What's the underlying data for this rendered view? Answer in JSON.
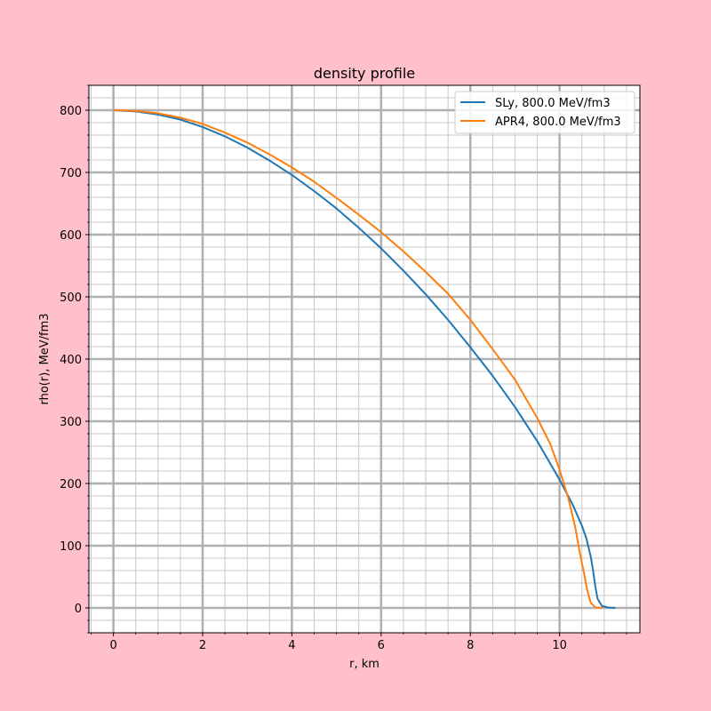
{
  "chart_data": {
    "type": "line",
    "title": "density profile",
    "xlabel": "r, km",
    "ylabel": "rho(r), MeV/fm3",
    "xlim": [
      -0.55,
      11.8
    ],
    "ylim": [
      -40,
      840
    ],
    "xticks": [
      0,
      2,
      4,
      6,
      8,
      10
    ],
    "yticks": [
      0,
      100,
      200,
      300,
      400,
      500,
      600,
      700,
      800
    ],
    "x_minor_step": 0.5,
    "y_minor_step": 20,
    "grid": true,
    "legend_position": "top-right",
    "series": [
      {
        "name": "SLy, 800.0 MeV/fm3",
        "color": "#1f77b4",
        "points": [
          [
            0,
            800
          ],
          [
            0.5,
            798
          ],
          [
            1,
            793
          ],
          [
            1.5,
            785
          ],
          [
            2,
            773
          ],
          [
            2.5,
            758
          ],
          [
            3,
            740
          ],
          [
            3.5,
            719
          ],
          [
            4,
            696
          ],
          [
            4.5,
            670
          ],
          [
            5,
            642
          ],
          [
            5.5,
            611
          ],
          [
            6,
            578
          ],
          [
            6.5,
            542
          ],
          [
            7,
            504
          ],
          [
            7.5,
            463
          ],
          [
            8,
            419
          ],
          [
            8.5,
            373
          ],
          [
            9,
            323
          ],
          [
            9.5,
            268
          ],
          [
            10,
            206
          ],
          [
            10.3,
            165
          ],
          [
            10.5,
            132
          ],
          [
            10.6,
            112
          ],
          [
            10.7,
            82
          ],
          [
            10.75,
            60
          ],
          [
            10.8,
            35
          ],
          [
            10.85,
            15
          ],
          [
            10.95,
            3
          ],
          [
            11.1,
            0.5
          ],
          [
            11.25,
            0
          ]
        ]
      },
      {
        "name": "APR4, 800.0 MeV/fm3",
        "color": "#ff7f0e",
        "points": [
          [
            0,
            800
          ],
          [
            0.5,
            799
          ],
          [
            1,
            795
          ],
          [
            1.5,
            788
          ],
          [
            2,
            778
          ],
          [
            2.5,
            764
          ],
          [
            3,
            748
          ],
          [
            3.5,
            729
          ],
          [
            4,
            708
          ],
          [
            4.5,
            685
          ],
          [
            5,
            659
          ],
          [
            5.5,
            632
          ],
          [
            6,
            604
          ],
          [
            6.5,
            573
          ],
          [
            7,
            540
          ],
          [
            7.5,
            505
          ],
          [
            8,
            463
          ],
          [
            8.5,
            416
          ],
          [
            9,
            367
          ],
          [
            9.5,
            305
          ],
          [
            9.8,
            262
          ],
          [
            10,
            222
          ],
          [
            10.2,
            175
          ],
          [
            10.35,
            130
          ],
          [
            10.45,
            90
          ],
          [
            10.55,
            55
          ],
          [
            10.62,
            28
          ],
          [
            10.7,
            8
          ],
          [
            10.8,
            1
          ],
          [
            10.95,
            0
          ]
        ]
      }
    ]
  }
}
